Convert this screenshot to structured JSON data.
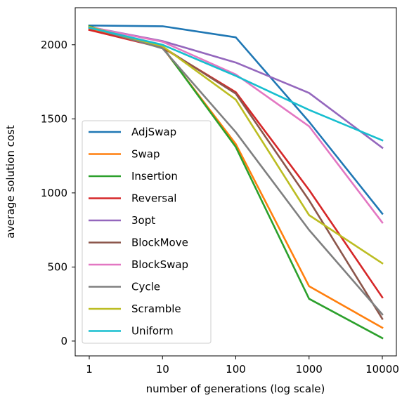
{
  "chart_data": {
    "type": "line",
    "xlabel": "number of generations (log scale)",
    "ylabel": "average solution cost",
    "xscale": "log",
    "x": [
      1,
      10,
      100,
      1000,
      10000
    ],
    "xticklabels": [
      "1",
      "10",
      "100",
      "1000",
      "10000"
    ],
    "ylim": [
      -100,
      2250
    ],
    "yticks": [
      0,
      500,
      1000,
      1500,
      2000
    ],
    "yticklabels": [
      "0",
      "500",
      "1000",
      "1500",
      "2000"
    ],
    "grid": false,
    "legend_position": "lower-left",
    "series": [
      {
        "name": "AdjSwap",
        "color": "#1f77b4",
        "values": [
          2130,
          2125,
          2050,
          1480,
          860
        ]
      },
      {
        "name": "Swap",
        "color": "#ff7f0e",
        "values": [
          2110,
          1980,
          1330,
          370,
          90
        ]
      },
      {
        "name": "Insertion",
        "color": "#2ca02c",
        "values": [
          2125,
          1985,
          1310,
          285,
          20
        ]
      },
      {
        "name": "Reversal",
        "color": "#d62728",
        "values": [
          2100,
          1980,
          1680,
          1020,
          295
        ]
      },
      {
        "name": "3opt",
        "color": "#9467bd",
        "values": [
          2120,
          2025,
          1880,
          1675,
          1305
        ]
      },
      {
        "name": "BlockMove",
        "color": "#8c564b",
        "values": [
          2120,
          1985,
          1670,
          950,
          150
        ]
      },
      {
        "name": "BlockSwap",
        "color": "#e377c2",
        "values": [
          2120,
          2020,
          1800,
          1450,
          800
        ]
      },
      {
        "name": "Cycle",
        "color": "#7f7f7f",
        "values": [
          2120,
          1975,
          1410,
          750,
          180
        ]
      },
      {
        "name": "Scramble",
        "color": "#bcbd22",
        "values": [
          2120,
          1990,
          1630,
          850,
          525
        ]
      },
      {
        "name": "Uniform",
        "color": "#17becf",
        "values": [
          2115,
          2000,
          1790,
          1560,
          1355
        ]
      }
    ]
  }
}
